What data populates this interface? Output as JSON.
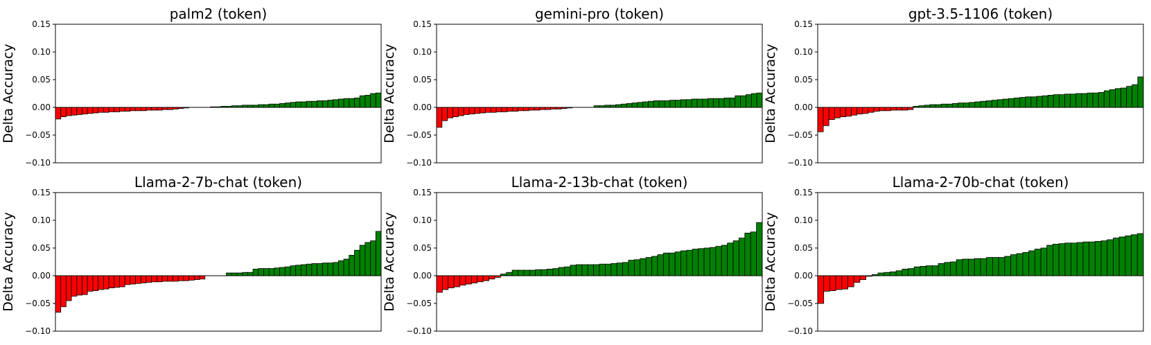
{
  "chart_data": [
    {
      "type": "bar",
      "title": "palm2 (token)",
      "xlabel": "",
      "ylabel": "Delta Accuracy",
      "ylim": [
        -0.1,
        0.15
      ],
      "yticks": [
        "0.15",
        "0.10",
        "0.05",
        "0.00",
        "−0.05",
        "−0.10"
      ],
      "yticks_values": [
        0.15,
        0.1,
        0.05,
        0.0,
        -0.05,
        -0.1
      ],
      "grid": false,
      "colors": {
        "positive": "#008000",
        "negative": "#ff0000",
        "edge": "#000000"
      },
      "values": [
        -0.021,
        -0.017,
        -0.015,
        -0.014,
        -0.013,
        -0.012,
        -0.011,
        -0.01,
        -0.009,
        -0.009,
        -0.008,
        -0.008,
        -0.007,
        -0.007,
        -0.006,
        -0.006,
        -0.006,
        -0.005,
        -0.005,
        -0.005,
        -0.004,
        -0.004,
        -0.003,
        -0.002,
        -0.001,
        0.0,
        0.0,
        0.0,
        0.0,
        0.001,
        0.001,
        0.002,
        0.002,
        0.003,
        0.003,
        0.004,
        0.004,
        0.004,
        0.005,
        0.005,
        0.006,
        0.006,
        0.007,
        0.008,
        0.009,
        0.01,
        0.01,
        0.011,
        0.011,
        0.012,
        0.012,
        0.013,
        0.014,
        0.015,
        0.016,
        0.016,
        0.017,
        0.021,
        0.022,
        0.025,
        0.026
      ]
    },
    {
      "type": "bar",
      "title": "gemini-pro (token)",
      "xlabel": "",
      "ylabel": "Delta Accuracy",
      "ylim": [
        -0.1,
        0.15
      ],
      "yticks": [
        "0.15",
        "0.10",
        "0.05",
        "0.00",
        "−0.05",
        "−0.10"
      ],
      "yticks_values": [
        0.15,
        0.1,
        0.05,
        0.0,
        -0.05,
        -0.1
      ],
      "grid": false,
      "colors": {
        "positive": "#008000",
        "negative": "#ff0000",
        "edge": "#000000"
      },
      "values": [
        -0.036,
        -0.024,
        -0.019,
        -0.017,
        -0.015,
        -0.013,
        -0.012,
        -0.011,
        -0.01,
        -0.009,
        -0.009,
        -0.008,
        -0.008,
        -0.007,
        -0.007,
        -0.006,
        -0.006,
        -0.005,
        -0.005,
        -0.004,
        -0.004,
        -0.003,
        -0.003,
        -0.002,
        -0.001,
        0.0,
        0.0,
        0.0,
        0.0,
        0.003,
        0.003,
        0.004,
        0.004,
        0.005,
        0.006,
        0.007,
        0.008,
        0.009,
        0.01,
        0.011,
        0.012,
        0.012,
        0.012,
        0.013,
        0.013,
        0.014,
        0.014,
        0.015,
        0.015,
        0.015,
        0.016,
        0.016,
        0.016,
        0.017,
        0.017,
        0.021,
        0.021,
        0.023,
        0.025,
        0.026
      ]
    },
    {
      "type": "bar",
      "title": "gpt-3.5-1106 (token)",
      "xlabel": "",
      "ylabel": "Delta Accuracy",
      "ylim": [
        -0.1,
        0.15
      ],
      "yticks": [
        "0.15",
        "0.10",
        "0.05",
        "0.00",
        "−0.05",
        "−0.10"
      ],
      "yticks_values": [
        0.15,
        0.1,
        0.05,
        0.0,
        -0.05,
        -0.1
      ],
      "grid": false,
      "colors": {
        "positive": "#008000",
        "negative": "#ff0000",
        "edge": "#000000"
      },
      "values": [
        -0.044,
        -0.033,
        -0.022,
        -0.019,
        -0.017,
        -0.016,
        -0.014,
        -0.012,
        -0.011,
        -0.009,
        -0.007,
        -0.006,
        -0.006,
        -0.005,
        -0.005,
        -0.005,
        -0.004,
        0.002,
        0.003,
        0.004,
        0.005,
        0.005,
        0.006,
        0.006,
        0.007,
        0.008,
        0.008,
        0.009,
        0.01,
        0.011,
        0.012,
        0.013,
        0.014,
        0.015,
        0.016,
        0.017,
        0.018,
        0.019,
        0.019,
        0.02,
        0.021,
        0.022,
        0.023,
        0.023,
        0.024,
        0.024,
        0.025,
        0.025,
        0.026,
        0.026,
        0.027,
        0.03,
        0.032,
        0.034,
        0.035,
        0.038,
        0.041,
        0.055
      ]
    },
    {
      "type": "bar",
      "title": "Llama-2-7b-chat (token)",
      "xlabel": "",
      "ylabel": "Delta Accuracy",
      "ylim": [
        -0.1,
        0.15
      ],
      "yticks": [
        "0.15",
        "0.10",
        "0.05",
        "0.00",
        "−0.05",
        "−0.10"
      ],
      "yticks_values": [
        0.15,
        0.1,
        0.05,
        0.0,
        -0.05,
        -0.1
      ],
      "grid": false,
      "colors": {
        "positive": "#008000",
        "negative": "#ff0000",
        "edge": "#000000"
      },
      "values": [
        -0.066,
        -0.056,
        -0.045,
        -0.037,
        -0.035,
        -0.034,
        -0.028,
        -0.027,
        -0.025,
        -0.024,
        -0.022,
        -0.021,
        -0.02,
        -0.016,
        -0.015,
        -0.014,
        -0.013,
        -0.012,
        -0.011,
        -0.011,
        -0.01,
        -0.01,
        -0.01,
        -0.009,
        -0.009,
        -0.008,
        -0.007,
        -0.006,
        0.0,
        0.0,
        0.0,
        0.0,
        0.005,
        0.005,
        0.005,
        0.006,
        0.006,
        0.012,
        0.013,
        0.013,
        0.013,
        0.014,
        0.015,
        0.016,
        0.018,
        0.019,
        0.02,
        0.021,
        0.022,
        0.022,
        0.023,
        0.023,
        0.024,
        0.027,
        0.03,
        0.037,
        0.046,
        0.055,
        0.06,
        0.063,
        0.08
      ]
    },
    {
      "type": "bar",
      "title": "Llama-2-13b-chat (token)",
      "xlabel": "",
      "ylabel": "Delta Accuracy",
      "ylim": [
        -0.1,
        0.15
      ],
      "yticks": [
        "0.15",
        "0.10",
        "0.05",
        "0.00",
        "−0.05",
        "−0.10"
      ],
      "yticks_values": [
        0.15,
        0.1,
        0.05,
        0.0,
        -0.05,
        -0.1
      ],
      "grid": false,
      "colors": {
        "positive": "#008000",
        "negative": "#ff0000",
        "edge": "#000000"
      },
      "values": [
        -0.03,
        -0.025,
        -0.022,
        -0.02,
        -0.017,
        -0.015,
        -0.013,
        -0.011,
        -0.009,
        -0.006,
        -0.003,
        0.003,
        0.006,
        0.01,
        0.01,
        0.01,
        0.01,
        0.011,
        0.011,
        0.012,
        0.013,
        0.015,
        0.016,
        0.019,
        0.02,
        0.02,
        0.02,
        0.02,
        0.021,
        0.021,
        0.022,
        0.023,
        0.024,
        0.028,
        0.029,
        0.031,
        0.033,
        0.035,
        0.038,
        0.041,
        0.041,
        0.043,
        0.045,
        0.046,
        0.048,
        0.049,
        0.05,
        0.051,
        0.053,
        0.055,
        0.059,
        0.063,
        0.068,
        0.077,
        0.079,
        0.096
      ]
    },
    {
      "type": "bar",
      "title": "Llama-2-70b-chat (token)",
      "xlabel": "",
      "ylabel": "Delta Accuracy",
      "ylim": [
        -0.1,
        0.15
      ],
      "yticks": [
        "0.15",
        "0.10",
        "0.05",
        "0.00",
        "−0.05",
        "−0.10"
      ],
      "yticks_values": [
        0.15,
        0.1,
        0.05,
        0.0,
        -0.05,
        -0.1
      ],
      "grid": false,
      "colors": {
        "positive": "#008000",
        "negative": "#ff0000",
        "edge": "#000000"
      },
      "values": [
        -0.05,
        -0.028,
        -0.027,
        -0.025,
        -0.024,
        -0.02,
        -0.012,
        -0.007,
        -0.001,
        0.002,
        0.005,
        0.006,
        0.007,
        0.009,
        0.012,
        0.013,
        0.016,
        0.017,
        0.018,
        0.018,
        0.022,
        0.024,
        0.025,
        0.029,
        0.03,
        0.03,
        0.031,
        0.031,
        0.033,
        0.033,
        0.033,
        0.035,
        0.038,
        0.04,
        0.042,
        0.045,
        0.048,
        0.05,
        0.055,
        0.057,
        0.058,
        0.059,
        0.059,
        0.06,
        0.061,
        0.061,
        0.062,
        0.063,
        0.065,
        0.068,
        0.07,
        0.072,
        0.074,
        0.076
      ]
    }
  ]
}
